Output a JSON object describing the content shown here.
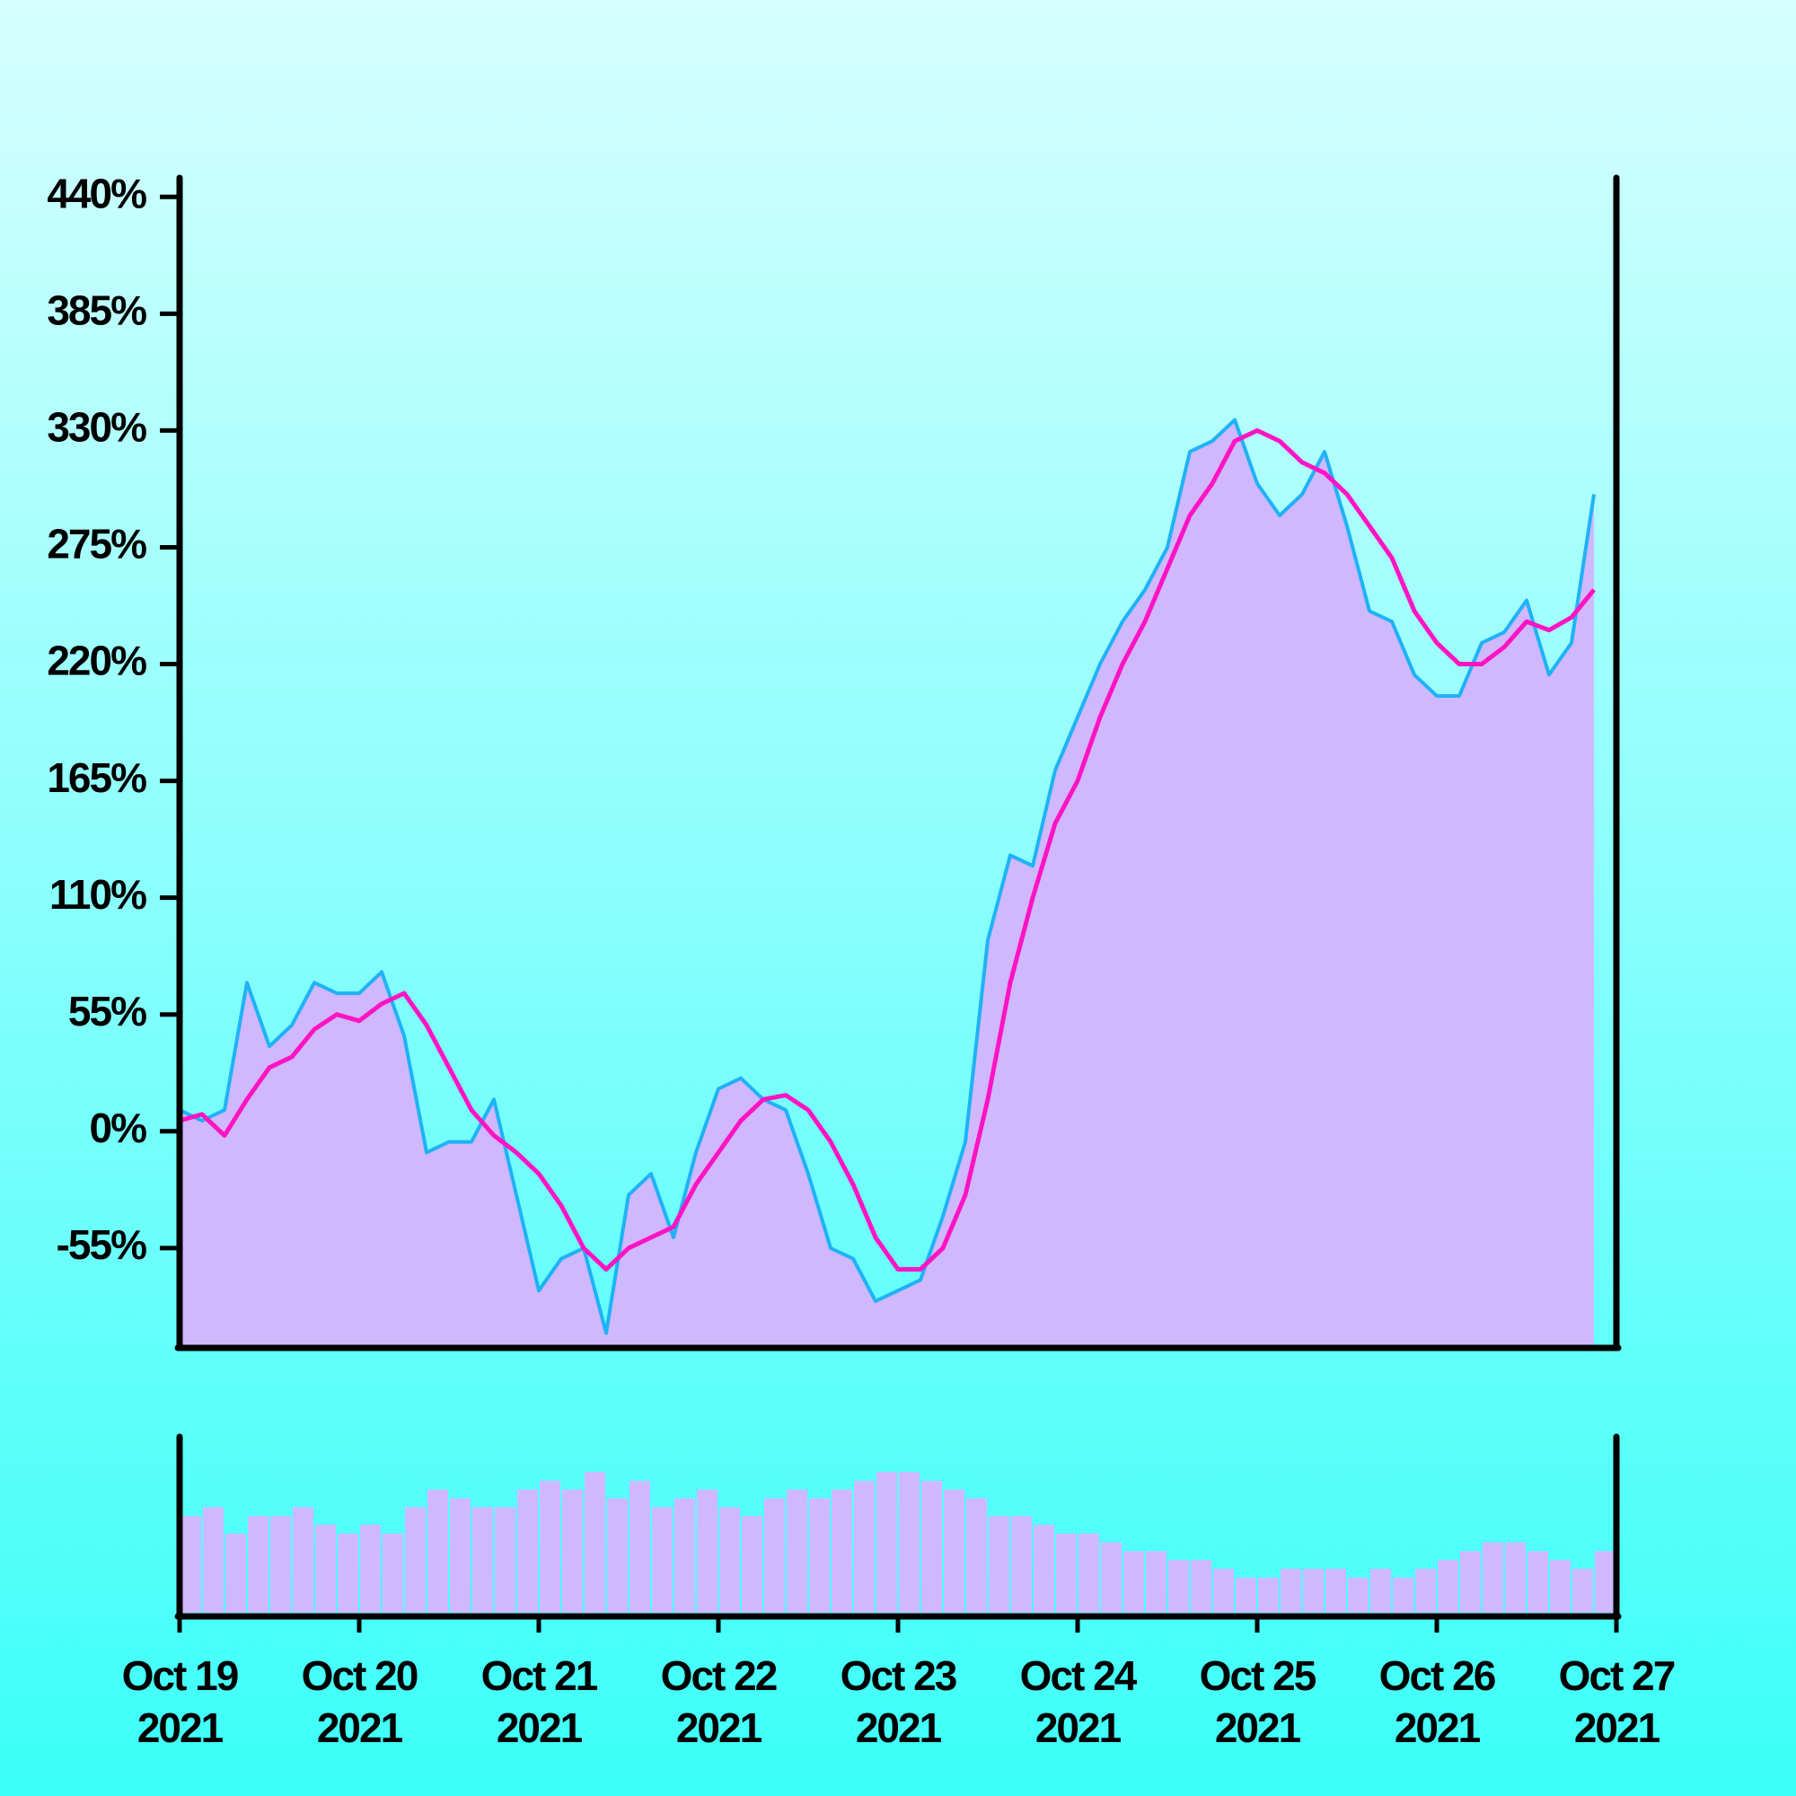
{
  "chart_data": [
    {
      "type": "area",
      "x": [
        "2021-10-19T00:00",
        "2021-10-19T03:00",
        "2021-10-19T06:00",
        "2021-10-19T09:00",
        "2021-10-19T12:00",
        "2021-10-19T15:00",
        "2021-10-19T18:00",
        "2021-10-19T21:00",
        "2021-10-20T00:00",
        "2021-10-20T03:00",
        "2021-10-20T06:00",
        "2021-10-20T09:00",
        "2021-10-20T12:00",
        "2021-10-20T15:00",
        "2021-10-20T18:00",
        "2021-10-20T21:00",
        "2021-10-21T00:00",
        "2021-10-21T03:00",
        "2021-10-21T06:00",
        "2021-10-21T09:00",
        "2021-10-21T12:00",
        "2021-10-21T15:00",
        "2021-10-21T18:00",
        "2021-10-21T21:00",
        "2021-10-22T00:00",
        "2021-10-22T03:00",
        "2021-10-22T06:00",
        "2021-10-22T09:00",
        "2021-10-22T12:00",
        "2021-10-22T15:00",
        "2021-10-22T18:00",
        "2021-10-22T21:00",
        "2021-10-23T00:00",
        "2021-10-23T03:00",
        "2021-10-23T06:00",
        "2021-10-23T09:00",
        "2021-10-23T12:00",
        "2021-10-23T15:00",
        "2021-10-23T18:00",
        "2021-10-23T21:00",
        "2021-10-24T00:00",
        "2021-10-24T03:00",
        "2021-10-24T06:00",
        "2021-10-24T09:00",
        "2021-10-24T12:00",
        "2021-10-24T15:00",
        "2021-10-24T18:00",
        "2021-10-24T21:00",
        "2021-10-25T00:00",
        "2021-10-25T03:00",
        "2021-10-25T06:00",
        "2021-10-25T09:00",
        "2021-10-25T12:00",
        "2021-10-25T15:00",
        "2021-10-25T18:00",
        "2021-10-25T21:00",
        "2021-10-26T00:00",
        "2021-10-26T03:00",
        "2021-10-26T06:00",
        "2021-10-26T09:00",
        "2021-10-26T12:00",
        "2021-10-26T15:00",
        "2021-10-26T18:00",
        "2021-10-26T21:00"
      ],
      "series": [
        {
          "color": "#1fb2f5",
          "fill": "#d0b8ff",
          "values": [
            10,
            5,
            10,
            70,
            40,
            50,
            70,
            65,
            65,
            75,
            45,
            -10,
            -5,
            -5,
            15,
            -30,
            -75,
            -60,
            -55,
            -95,
            -30,
            -20,
            -50,
            -10,
            20,
            25,
            15,
            10,
            -20,
            -55,
            -60,
            -80,
            -75,
            -70,
            -40,
            -5,
            90,
            130,
            125,
            170,
            195,
            220,
            240,
            255,
            275,
            320,
            325,
            335,
            305,
            290,
            300,
            320,
            285,
            245,
            240,
            215,
            205,
            205,
            230,
            235,
            250,
            215,
            230,
            300
          ]
        },
        {
          "color": "#ff14c4",
          "values": [
            5,
            8,
            -2,
            15,
            30,
            35,
            48,
            55,
            52,
            60,
            65,
            50,
            30,
            10,
            -2,
            -10,
            -20,
            -35,
            -55,
            -65,
            -55,
            -50,
            -45,
            -25,
            -10,
            5,
            15,
            17,
            10,
            -5,
            -25,
            -50,
            -65,
            -65,
            -55,
            -30,
            15,
            70,
            110,
            145,
            165,
            195,
            220,
            240,
            265,
            290,
            305,
            325,
            330,
            325,
            315,
            310,
            300,
            285,
            270,
            245,
            230,
            220,
            220,
            228,
            240,
            236,
            242,
            255
          ]
        }
      ],
      "xlim": [
        "2021-10-19T00:00",
        "2021-10-27T00:00"
      ],
      "ylim": [
        -102,
        449
      ],
      "yticks": [
        {
          "value": -55,
          "label": "-55%"
        },
        {
          "value": 0,
          "label": "0%"
        },
        {
          "value": 55,
          "label": "55%"
        },
        {
          "value": 110,
          "label": "110%"
        },
        {
          "value": 165,
          "label": "165%"
        },
        {
          "value": 220,
          "label": "220%"
        },
        {
          "value": 275,
          "label": "275%"
        },
        {
          "value": 330,
          "label": "330%"
        },
        {
          "value": 385,
          "label": "385%"
        },
        {
          "value": 440,
          "label": "440%"
        }
      ]
    },
    {
      "type": "bar",
      "color": "#d0b8ff",
      "values": [
        55,
        60,
        45,
        55,
        55,
        60,
        50,
        45,
        50,
        45,
        60,
        70,
        65,
        60,
        60,
        70,
        75,
        70,
        80,
        65,
        75,
        60,
        65,
        70,
        60,
        55,
        65,
        70,
        65,
        70,
        75,
        80,
        80,
        75,
        70,
        65,
        55,
        55,
        50,
        45,
        45,
        40,
        35,
        35,
        30,
        30,
        25,
        20,
        20,
        25,
        25,
        25,
        20,
        25,
        20,
        25,
        30,
        35,
        40,
        40,
        35,
        30,
        25,
        35
      ],
      "ylim": [
        0,
        100
      ],
      "xlim": [
        "2021-10-19T00:00",
        "2021-10-27T00:00"
      ],
      "xticks": [
        {
          "value": "2021-10-19T00:00",
          "label": "Oct 19\n2021"
        },
        {
          "value": "2021-10-20T00:00",
          "label": "Oct 20\n2021"
        },
        {
          "value": "2021-10-21T00:00",
          "label": "Oct 21\n2021"
        },
        {
          "value": "2021-10-22T00:00",
          "label": "Oct 22\n2021"
        },
        {
          "value": "2021-10-23T00:00",
          "label": "Oct 23\n2021"
        },
        {
          "value": "2021-10-24T00:00",
          "label": "Oct 24\n2021"
        },
        {
          "value": "2021-10-25T00:00",
          "label": "Oct 25\n2021"
        },
        {
          "value": "2021-10-26T00:00",
          "label": "Oct 26\n2021"
        },
        {
          "value": "2021-10-27T00:00",
          "label": "Oct 27\n2021"
        }
      ]
    }
  ]
}
